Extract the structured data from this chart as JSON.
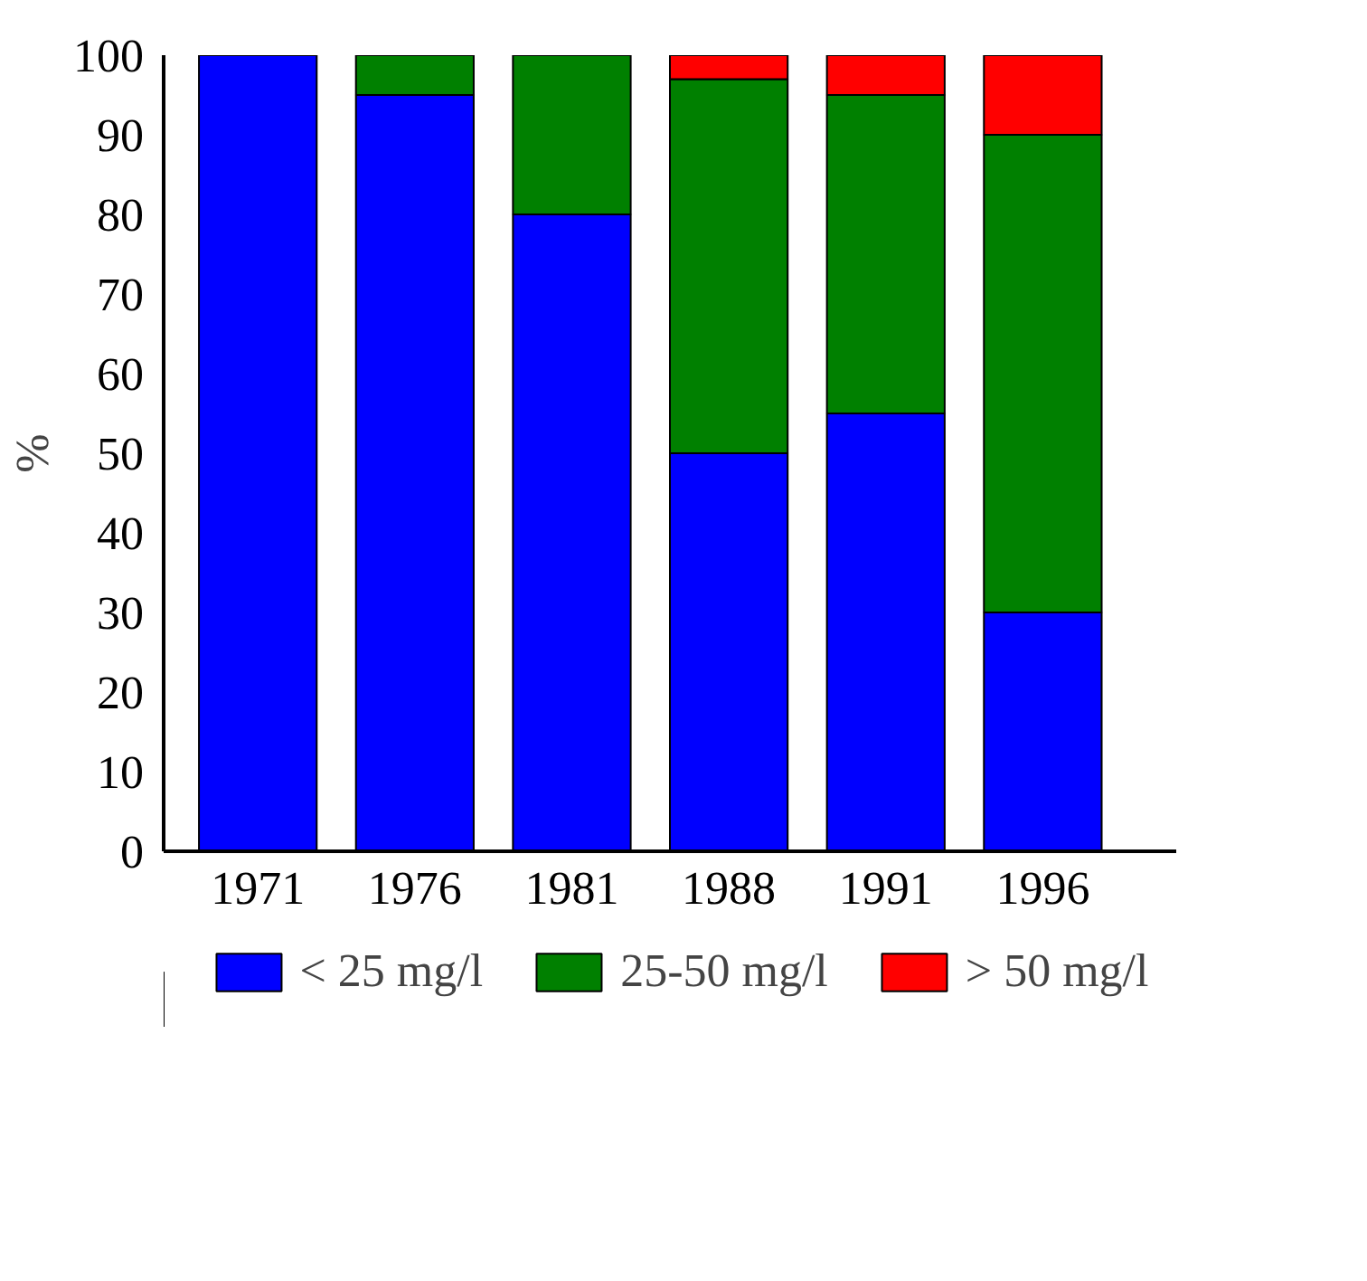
{
  "chart_data": {
    "type": "bar",
    "stacked": true,
    "ylabel": "%",
    "categories": [
      "1971",
      "1976",
      "1981",
      "1988",
      "1991",
      "1996"
    ],
    "series": [
      {
        "name": "< 25 mg/l",
        "color": "#0000ff",
        "values": [
          100,
          95,
          80,
          50,
          55,
          30
        ]
      },
      {
        "name": "25-50 mg/l",
        "color": "#008000",
        "values": [
          0,
          5,
          20,
          47,
          40,
          60
        ]
      },
      {
        "name": "> 50 mg/l",
        "color": "#ff0000",
        "values": [
          0,
          0,
          0,
          3,
          5,
          10
        ]
      }
    ],
    "ylim": [
      0,
      100
    ],
    "yticks": [
      0,
      10,
      20,
      30,
      40,
      50,
      60,
      70,
      80,
      90,
      100
    ],
    "grid": false,
    "legend": "bottom"
  }
}
